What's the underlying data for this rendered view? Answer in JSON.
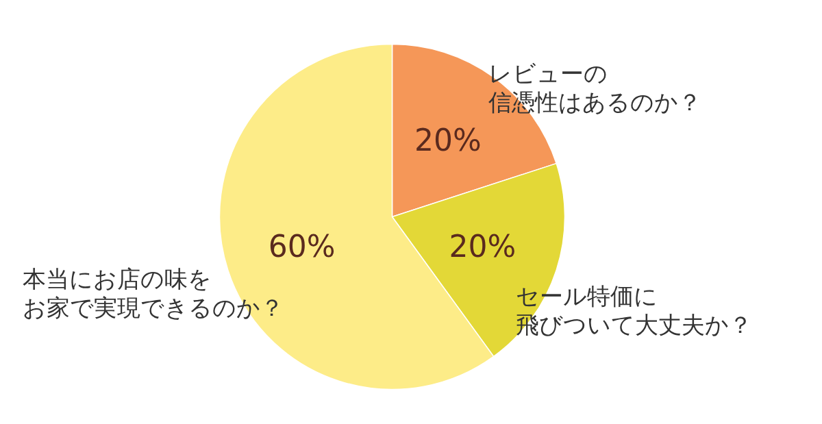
{
  "chart_data": {
    "type": "pie",
    "categories": [
      "レビューの信憑性はあるのか？",
      "セール特価に飛びついて大丈夫か？",
      "本当にお店の味をお家で実現できるのか？"
    ],
    "values": [
      20,
      20,
      60
    ],
    "colors": [
      "#f59758",
      "#e3d837",
      "#fdec88"
    ],
    "value_labels": [
      "20%",
      "20%",
      "60%"
    ]
  }
}
